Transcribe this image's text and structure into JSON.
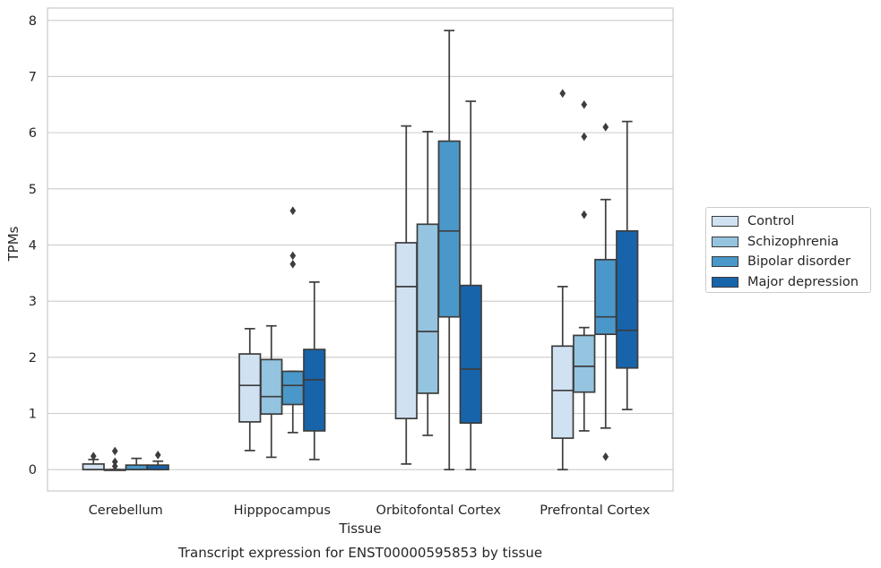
{
  "chart_data": {
    "type": "box",
    "title": "Transcript expression for ENST00000595853 by tissue",
    "xlabel": "Tissue",
    "ylabel": "TPMs",
    "ylim": [
      -0.38,
      8.22
    ],
    "yticks": [
      0,
      1,
      2,
      3,
      4,
      5,
      6,
      7,
      8
    ],
    "grid": true,
    "legend_position": "right",
    "categories": [
      "Cerebellum",
      "Hipppocampus",
      "Orbitofontal Cortex",
      "Prefrontal Cortex"
    ],
    "series": [
      {
        "name": "Control",
        "color": "#d0e1f2",
        "boxes": [
          {
            "whislo": 0.0,
            "q1": 0.0,
            "med": 0.0,
            "q3": 0.1,
            "whishi": 0.18,
            "fliers": [
              0.24
            ]
          },
          {
            "whislo": 0.34,
            "q1": 0.85,
            "med": 1.5,
            "q3": 2.06,
            "whishi": 2.51,
            "fliers": []
          },
          {
            "whislo": 0.1,
            "q1": 0.91,
            "med": 3.26,
            "q3": 4.04,
            "whishi": 6.12,
            "fliers": []
          },
          {
            "whislo": 0.0,
            "q1": 0.56,
            "med": 1.41,
            "q3": 2.2,
            "whishi": 3.26,
            "fliers": [
              6.7
            ]
          }
        ]
      },
      {
        "name": "Schizophrenia",
        "color": "#94c4df",
        "boxes": [
          {
            "whislo": 0.0,
            "q1": 0.0,
            "med": 0.0,
            "q3": 0.0,
            "whishi": 0.0,
            "fliers": [
              0.33,
              0.14,
              0.06
            ]
          },
          {
            "whislo": 0.22,
            "q1": 0.99,
            "med": 1.3,
            "q3": 1.96,
            "whishi": 2.56,
            "fliers": []
          },
          {
            "whislo": 0.61,
            "q1": 1.36,
            "med": 2.46,
            "q3": 4.37,
            "whishi": 6.02,
            "fliers": []
          },
          {
            "whislo": 0.69,
            "q1": 1.38,
            "med": 1.84,
            "q3": 2.39,
            "whishi": 2.53,
            "fliers": [
              6.5,
              5.93,
              4.54
            ]
          }
        ]
      },
      {
        "name": "Bipolar disorder",
        "color": "#4a98c9",
        "boxes": [
          {
            "whislo": 0.0,
            "q1": 0.0,
            "med": 0.0,
            "q3": 0.08,
            "whishi": 0.2,
            "fliers": []
          },
          {
            "whislo": 0.66,
            "q1": 1.16,
            "med": 1.5,
            "q3": 1.75,
            "whishi": 1.75,
            "fliers": [
              4.61,
              3.81,
              3.66
            ]
          },
          {
            "whislo": 0.0,
            "q1": 2.72,
            "med": 4.25,
            "q3": 5.85,
            "whishi": 7.82,
            "fliers": []
          },
          {
            "whislo": 0.74,
            "q1": 2.41,
            "med": 2.72,
            "q3": 3.74,
            "whishi": 4.81,
            "fliers": [
              6.1,
              0.23
            ]
          }
        ]
      },
      {
        "name": "Major depression",
        "color": "#1764ab",
        "boxes": [
          {
            "whislo": 0.0,
            "q1": 0.0,
            "med": 0.0,
            "q3": 0.08,
            "whishi": 0.15,
            "fliers": [
              0.26
            ]
          },
          {
            "whislo": 0.18,
            "q1": 0.69,
            "med": 1.6,
            "q3": 2.14,
            "whishi": 3.34,
            "fliers": []
          },
          {
            "whislo": 0.0,
            "q1": 0.83,
            "med": 1.79,
            "q3": 3.28,
            "whishi": 6.56,
            "fliers": []
          },
          {
            "whislo": 1.07,
            "q1": 1.81,
            "med": 2.48,
            "q3": 4.25,
            "whishi": 6.2,
            "fliers": []
          }
        ]
      }
    ]
  }
}
